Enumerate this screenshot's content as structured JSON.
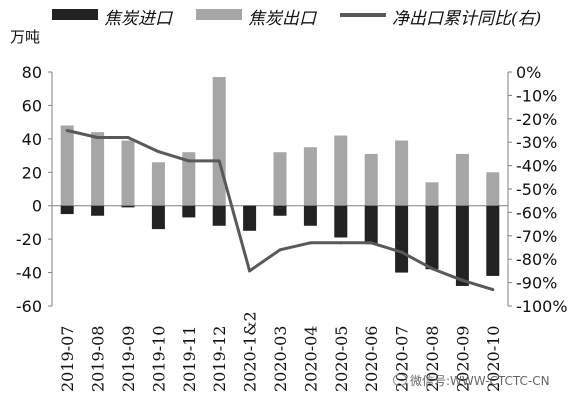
{
  "legend": {
    "import_label": "焦炭进口",
    "export_label": "焦炭出口",
    "line_label": "净出口累计同比(右)"
  },
  "left_unit": "万吨",
  "watermark": "微信号:WWW-CTCTC-CN",
  "colors": {
    "import": "#222222",
    "export": "#a6a6a6",
    "line": "#595959",
    "axis": "#808080"
  },
  "chart_data": {
    "type": "bar",
    "categories": [
      "2019-07",
      "2019-08",
      "2019-09",
      "2019-10",
      "2019-11",
      "2019-12",
      "2020-1&2",
      "2020-03",
      "2020-04",
      "2020-05",
      "2020-06",
      "2020-07",
      "2020-08",
      "2020-09",
      "2020-10"
    ],
    "series": [
      {
        "name": "焦炭进口",
        "axis": "left",
        "type": "bar",
        "values": [
          -5,
          -6,
          -1,
          -14,
          -7,
          -12,
          -15,
          -6,
          -12,
          -19,
          -23,
          -40,
          -38,
          -48,
          -42
        ]
      },
      {
        "name": "焦炭出口",
        "axis": "left",
        "type": "bar",
        "values": [
          48,
          44,
          39,
          26,
          32,
          77,
          0,
          32,
          35,
          42,
          31,
          39,
          14,
          31,
          20
        ]
      },
      {
        "name": "净出口累计同比(右)",
        "axis": "right",
        "type": "line",
        "values": [
          -25,
          -28,
          -28,
          -34,
          -38,
          -38,
          -85,
          -76,
          -73,
          -73,
          -73,
          -77,
          -84,
          -89,
          -93
        ]
      }
    ],
    "ylim_left": [
      -60,
      80
    ],
    "yticks_left": [
      -60,
      -40,
      -20,
      0,
      20,
      40,
      60,
      80
    ],
    "ylim_right": [
      -100,
      0
    ],
    "yticks_right_labels": [
      "0%",
      "-10%",
      "-20%",
      "-30%",
      "-40%",
      "-50%",
      "-60%",
      "-70%",
      "-80%",
      "-90%",
      "-100%"
    ],
    "ylabel_left": "万吨",
    "legend_position": "top"
  }
}
